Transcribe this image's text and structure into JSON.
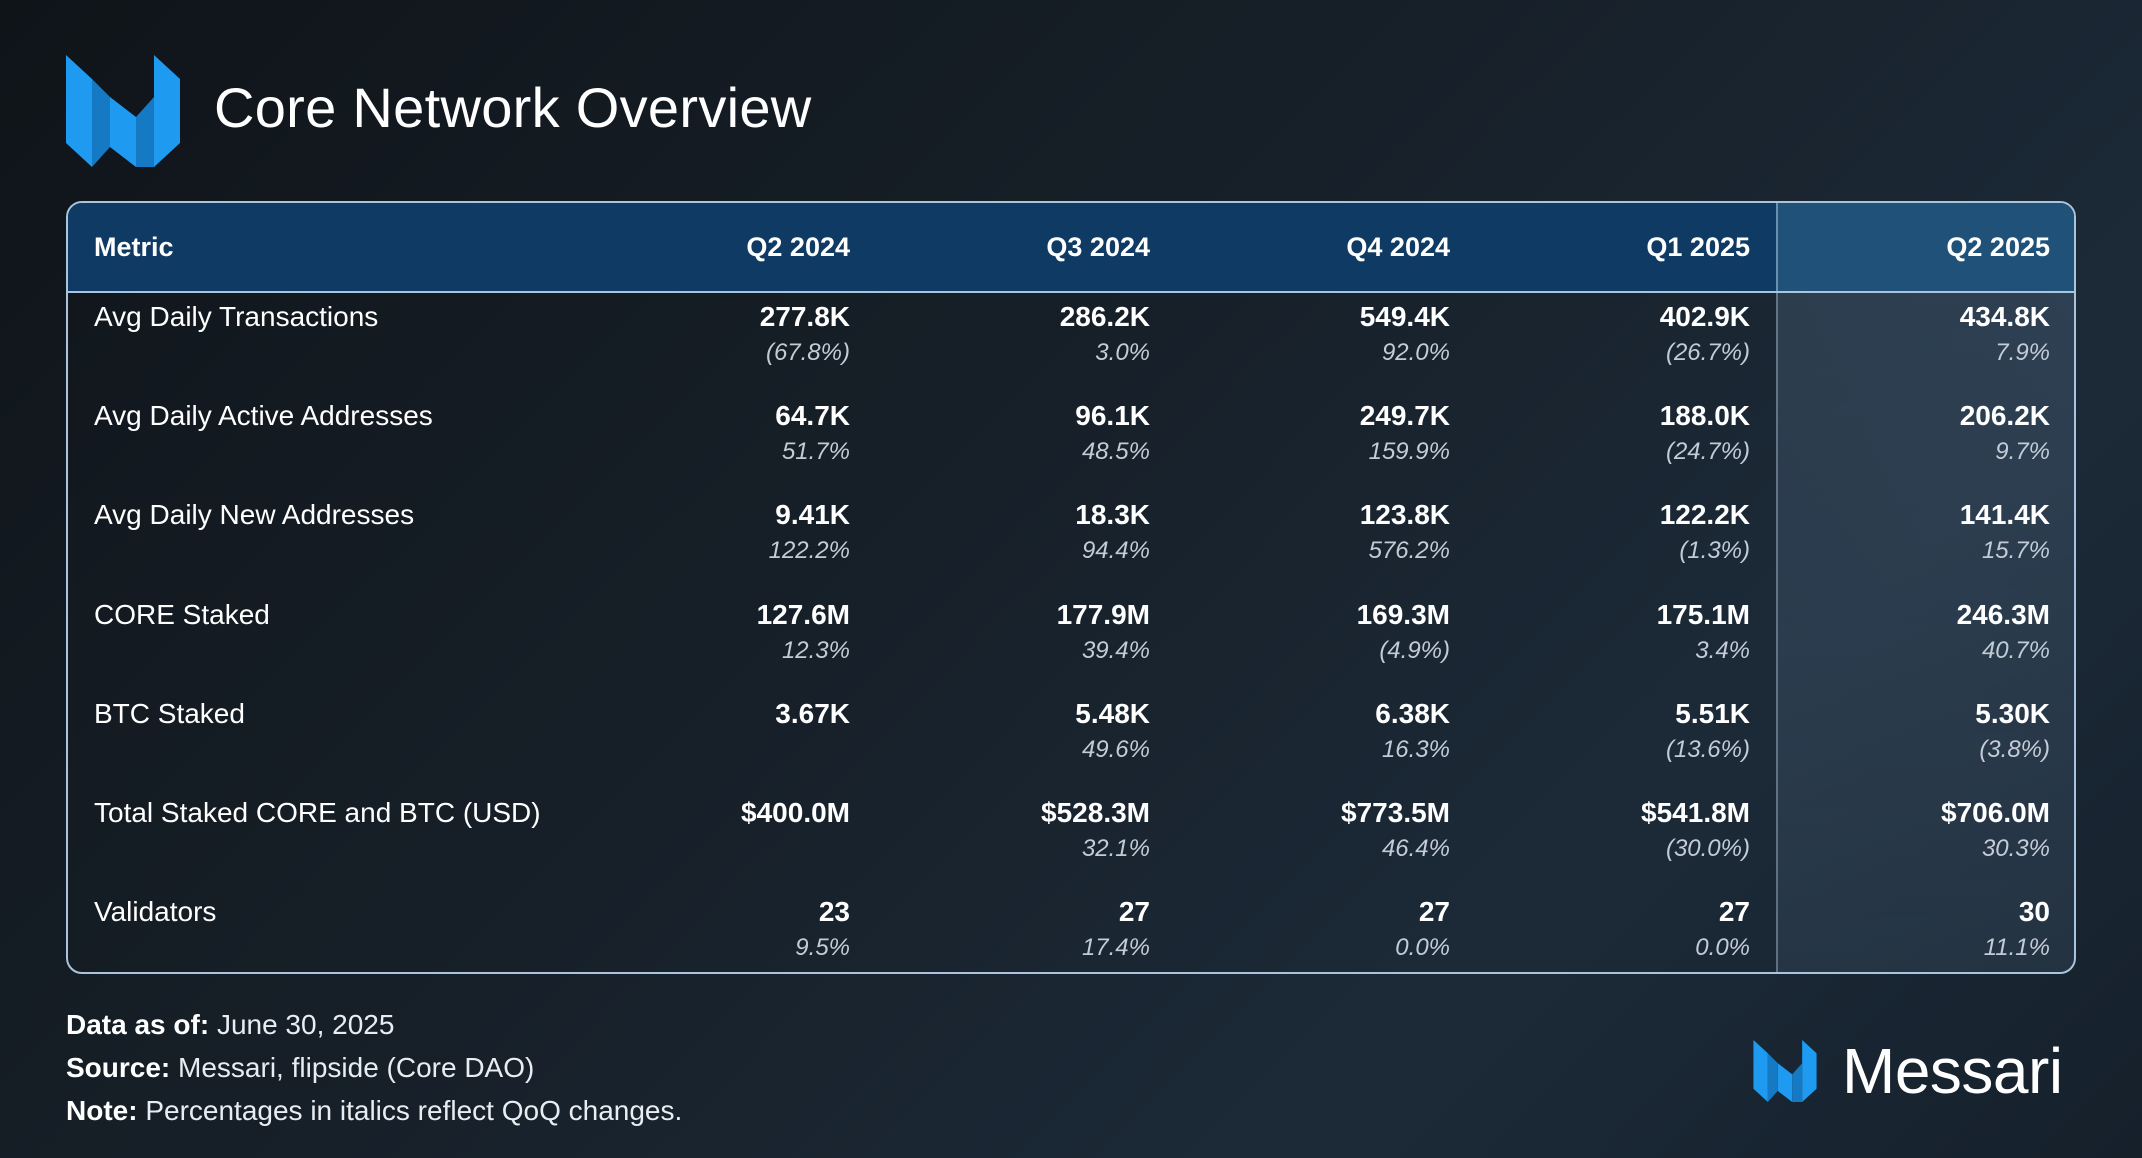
{
  "title": "Core Network Overview",
  "brand": {
    "name": "Messari",
    "accent_color": "#1e9bf0",
    "icon": "messari-logo-icon"
  },
  "table": {
    "columns": [
      "Metric",
      "Q2 2024",
      "Q3 2024",
      "Q4 2024",
      "Q1 2025",
      "Q2 2025"
    ],
    "rows": [
      {
        "metric": "Avg Daily Transactions",
        "values": [
          "277.8K",
          "286.2K",
          "549.4K",
          "402.9K",
          "434.8K"
        ],
        "changes": [
          "(67.8%)",
          "3.0%",
          "92.0%",
          "(26.7%)",
          "7.9%"
        ]
      },
      {
        "metric": "Avg Daily Active Addresses",
        "values": [
          "64.7K",
          "96.1K",
          "249.7K",
          "188.0K",
          "206.2K"
        ],
        "changes": [
          "51.7%",
          "48.5%",
          "159.9%",
          "(24.7%)",
          "9.7%"
        ]
      },
      {
        "metric": "Avg Daily New Addresses",
        "values": [
          "9.41K",
          "18.3K",
          "123.8K",
          "122.2K",
          "141.4K"
        ],
        "changes": [
          "122.2%",
          "94.4%",
          "576.2%",
          "(1.3%)",
          "15.7%"
        ]
      },
      {
        "metric": "CORE Staked",
        "values": [
          "127.6M",
          "177.9M",
          "169.3M",
          "175.1M",
          "246.3M"
        ],
        "changes": [
          "12.3%",
          "39.4%",
          "(4.9%)",
          "3.4%",
          "40.7%"
        ]
      },
      {
        "metric": "BTC Staked",
        "values": [
          "3.67K",
          "5.48K",
          "6.38K",
          "5.51K",
          "5.30K"
        ],
        "changes": [
          "",
          "49.6%",
          "16.3%",
          "(13.6%)",
          "(3.8%)"
        ]
      },
      {
        "metric": "Total Staked CORE and BTC (USD)",
        "values": [
          "$400.0M",
          "$528.3M",
          "$773.5M",
          "$541.8M",
          "$706.0M"
        ],
        "changes": [
          "",
          "32.1%",
          "46.4%",
          "(30.0%)",
          "30.3%"
        ]
      },
      {
        "metric": "Validators",
        "values": [
          "23",
          "27",
          "27",
          "27",
          "30"
        ],
        "changes": [
          "9.5%",
          "17.4%",
          "0.0%",
          "0.0%",
          "11.1%"
        ]
      }
    ]
  },
  "footer": {
    "data_as_of_label": "Data as of:",
    "data_as_of_value": "June 30, 2025",
    "source_label": "Source:",
    "source_value": "Messari, flipside (Core DAO)",
    "note_label": "Note:",
    "note_value": "Percentages in italics reflect QoQ changes."
  }
}
